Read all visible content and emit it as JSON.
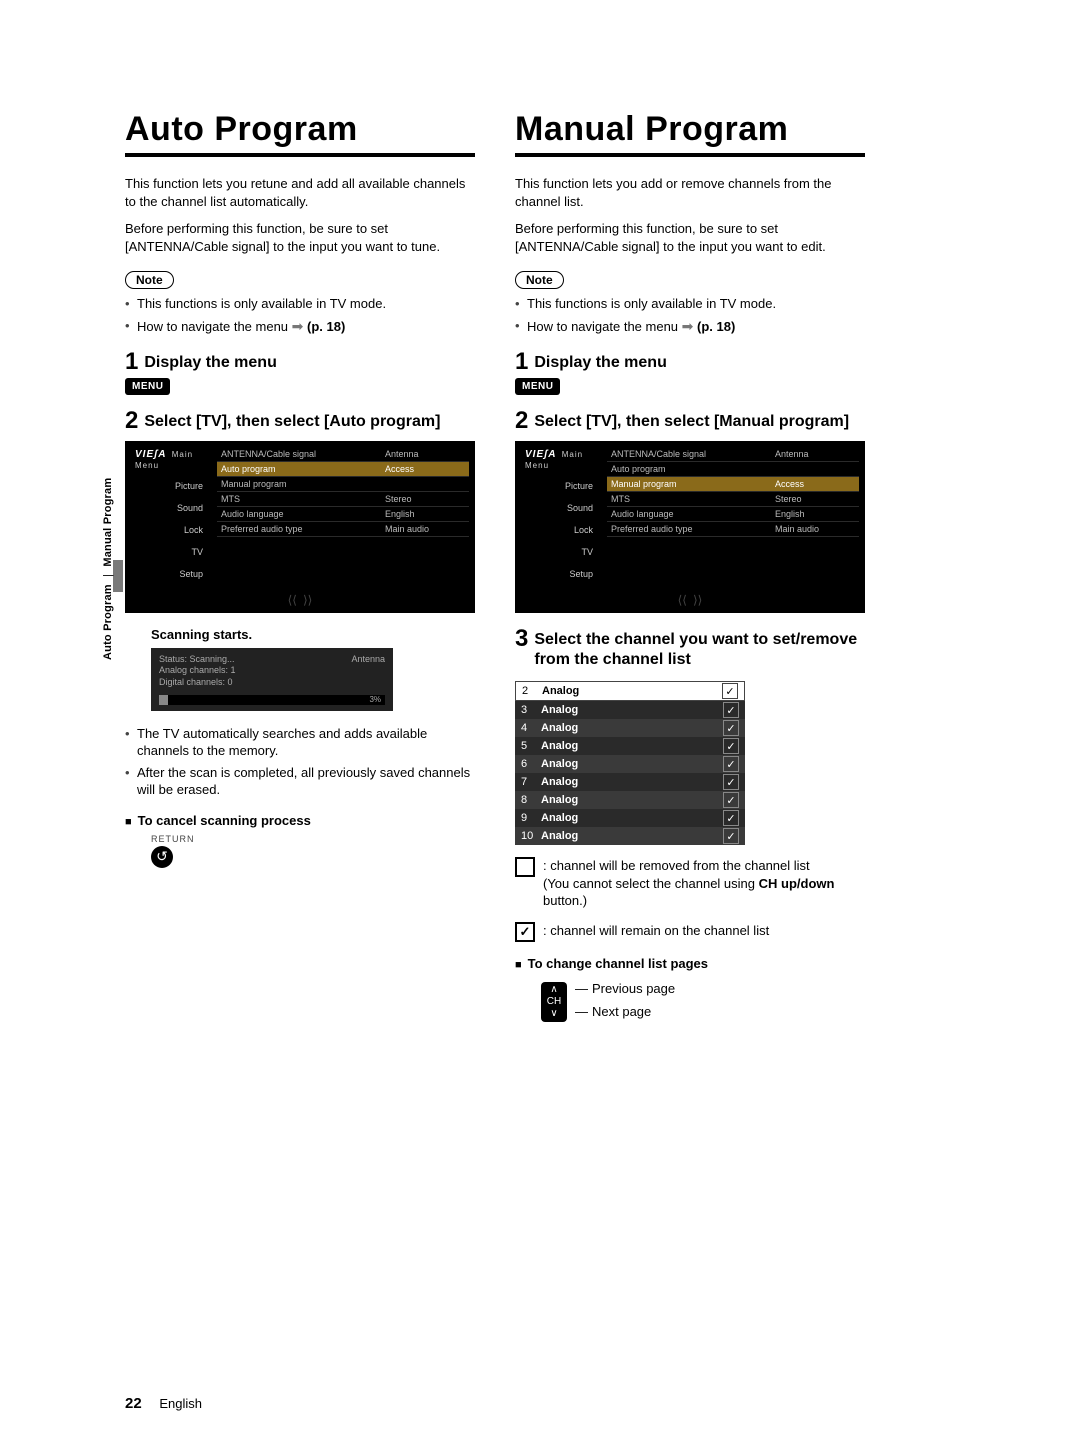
{
  "side_label": {
    "part1": "Auto Program",
    "sep": "|",
    "part2": "Manual Program"
  },
  "footer": {
    "page": "22",
    "lang": "English"
  },
  "left": {
    "title": "Auto Program",
    "intro1": "This function lets you retune and add all available channels to the channel list automatically.",
    "intro2": "Before performing this function, be sure to set [ANTENNA/Cable signal] to the input you want to tune.",
    "note_label": "Note",
    "note_b1": "This functions is only available in TV mode.",
    "note_b2a": "How to navigate the menu ",
    "note_b2_ref": "(p. 18)",
    "step1": {
      "num": "1",
      "title": "Display the menu",
      "menu": "MENU"
    },
    "step2": {
      "num": "2",
      "title": "Select [TV], then select [Auto program]"
    },
    "tv_menu": {
      "brand": "VIEʃA",
      "brand_sub": "Main Menu",
      "side": [
        "Picture",
        "Sound",
        "Lock",
        "TV",
        "Setup"
      ],
      "rows": [
        {
          "l": "ANTENNA/Cable signal",
          "r": "Antenna",
          "hi": false
        },
        {
          "l": "Auto program",
          "r": "Access",
          "hi": true
        },
        {
          "l": "Manual program",
          "r": "",
          "hi": false
        },
        {
          "l": "MTS",
          "r": "Stereo",
          "hi": false
        },
        {
          "l": "Audio language",
          "r": "English",
          "hi": false
        },
        {
          "l": "Preferred audio type",
          "r": "Main audio",
          "hi": false
        }
      ]
    },
    "scanning_title": "Scanning starts.",
    "scan": {
      "status": "Status: Scanning...",
      "analog": "Analog channels: 1",
      "digital": "Digital channels: 0",
      "antenna": "Antenna",
      "pct": "3%"
    },
    "after1": "The TV automatically searches and adds available channels to the memory.",
    "after2": "After the scan is completed, all previously saved channels will be erased.",
    "cancel_title": "To cancel scanning process",
    "return_label": "RETURN"
  },
  "right": {
    "title": "Manual Program",
    "intro1": "This function lets you add or remove channels from the channel list.",
    "intro2": "Before performing this function, be sure to set [ANTENNA/Cable signal] to the input you want to edit.",
    "note_label": "Note",
    "note_b1": "This functions is only available in TV mode.",
    "note_b2a": "How to navigate the menu ",
    "note_b2_ref": "(p. 18)",
    "step1": {
      "num": "1",
      "title": "Display the menu",
      "menu": "MENU"
    },
    "step2": {
      "num": "2",
      "title": "Select [TV], then select [Manual program]"
    },
    "tv_menu": {
      "brand": "VIEʃA",
      "brand_sub": "Main Menu",
      "side": [
        "Picture",
        "Sound",
        "Lock",
        "TV",
        "Setup"
      ],
      "rows": [
        {
          "l": "ANTENNA/Cable signal",
          "r": "Antenna",
          "hi": false
        },
        {
          "l": "Auto program",
          "r": "",
          "hi": false
        },
        {
          "l": "Manual program",
          "r": "Access",
          "hi": true
        },
        {
          "l": "MTS",
          "r": "Stereo",
          "hi": false
        },
        {
          "l": "Audio language",
          "r": "English",
          "hi": false
        },
        {
          "l": "Preferred audio type",
          "r": "Main audio",
          "hi": false
        }
      ]
    },
    "step3": {
      "num": "3",
      "title": "Select the channel you want to set/remove from the channel list"
    },
    "channels": [
      {
        "n": "2",
        "t": "Analog",
        "checked": true,
        "first": true
      },
      {
        "n": "3",
        "t": "Analog",
        "checked": true
      },
      {
        "n": "4",
        "t": "Analog",
        "checked": true
      },
      {
        "n": "5",
        "t": "Analog",
        "checked": true
      },
      {
        "n": "6",
        "t": "Analog",
        "checked": true
      },
      {
        "n": "7",
        "t": "Analog",
        "checked": true
      },
      {
        "n": "8",
        "t": "Analog",
        "checked": true
      },
      {
        "n": "9",
        "t": "Analog",
        "checked": true
      },
      {
        "n": "10",
        "t": "Analog",
        "checked": true
      }
    ],
    "legend_remove_a": "channel will be removed from the channel list",
    "legend_remove_b": "(You cannot select the channel using ",
    "legend_remove_bold": "CH up/down",
    "legend_remove_c": " button.)",
    "legend_keep": "channel will remain on the channel list",
    "change_title": "To change channel list pages",
    "prev": "Previous page",
    "next": "Next page"
  }
}
